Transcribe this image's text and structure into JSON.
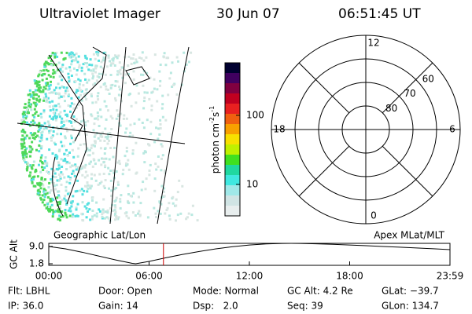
{
  "header": {
    "title": "Ultraviolet Imager",
    "date": "30 Jun 07",
    "time": "06:51:45 UT"
  },
  "colorbar": {
    "label_parts": [
      "photon cm",
      "-2",
      "s",
      "-1"
    ],
    "scale": "log",
    "clim": [
      3.5,
      575
    ],
    "ticks": [
      10,
      100
    ]
  },
  "polar_plot": {
    "rlim": [
      90,
      50
    ],
    "lat_rings": [
      60,
      70,
      80
    ],
    "mlt_ticks": [
      12,
      18,
      6,
      0
    ]
  },
  "altitude_plot": {
    "type": "line",
    "left_title": "Geographic Lat/Lon",
    "right_title": "Apex MLat/MLT",
    "ylabel": "GC Alt",
    "xlim": [
      0,
      24
    ],
    "ylim": [
      1.15,
      10.3
    ],
    "xticks": [
      {
        "value": 0,
        "label": "00:00"
      },
      {
        "value": 6,
        "label": "06:00"
      },
      {
        "value": 12,
        "label": "12:00"
      },
      {
        "value": 18,
        "label": "18:00"
      },
      {
        "value": 24,
        "label": "23:59"
      }
    ],
    "yticks": [
      {
        "value": 9,
        "label": "9.0"
      },
      {
        "value": 1.8,
        "label": "1.8"
      }
    ],
    "x": [
      0,
      1,
      2,
      3,
      4,
      5,
      5.2,
      6,
      7,
      8,
      9,
      10,
      11,
      12,
      13,
      14,
      14.5,
      15,
      16,
      17,
      18,
      19,
      20,
      21,
      22,
      23,
      24
    ],
    "values": [
      9.0,
      8.0,
      6.6,
      5.0,
      3.4,
      1.95,
      1.8,
      2.8,
      4.3,
      5.7,
      6.9,
      8.0,
      8.9,
      9.6,
      10.05,
      10.25,
      10.28,
      10.25,
      10.1,
      9.9,
      9.6,
      9.3,
      9.0,
      8.7,
      8.4,
      8.05,
      7.7
    ],
    "color": "#000000",
    "current_time": 6.86,
    "current_color": "#cc0000"
  },
  "info": [
    [
      "Flt: LBHL",
      "Door: Open",
      "Mode: Normal",
      "GC Alt: 4.2 Re",
      "GLat: −39.7"
    ],
    [
      "IP: 36.0",
      "Gain: 14",
      "Dsp:   2.0",
      "Seq: 39",
      "GLon: 134.7"
    ]
  ]
}
